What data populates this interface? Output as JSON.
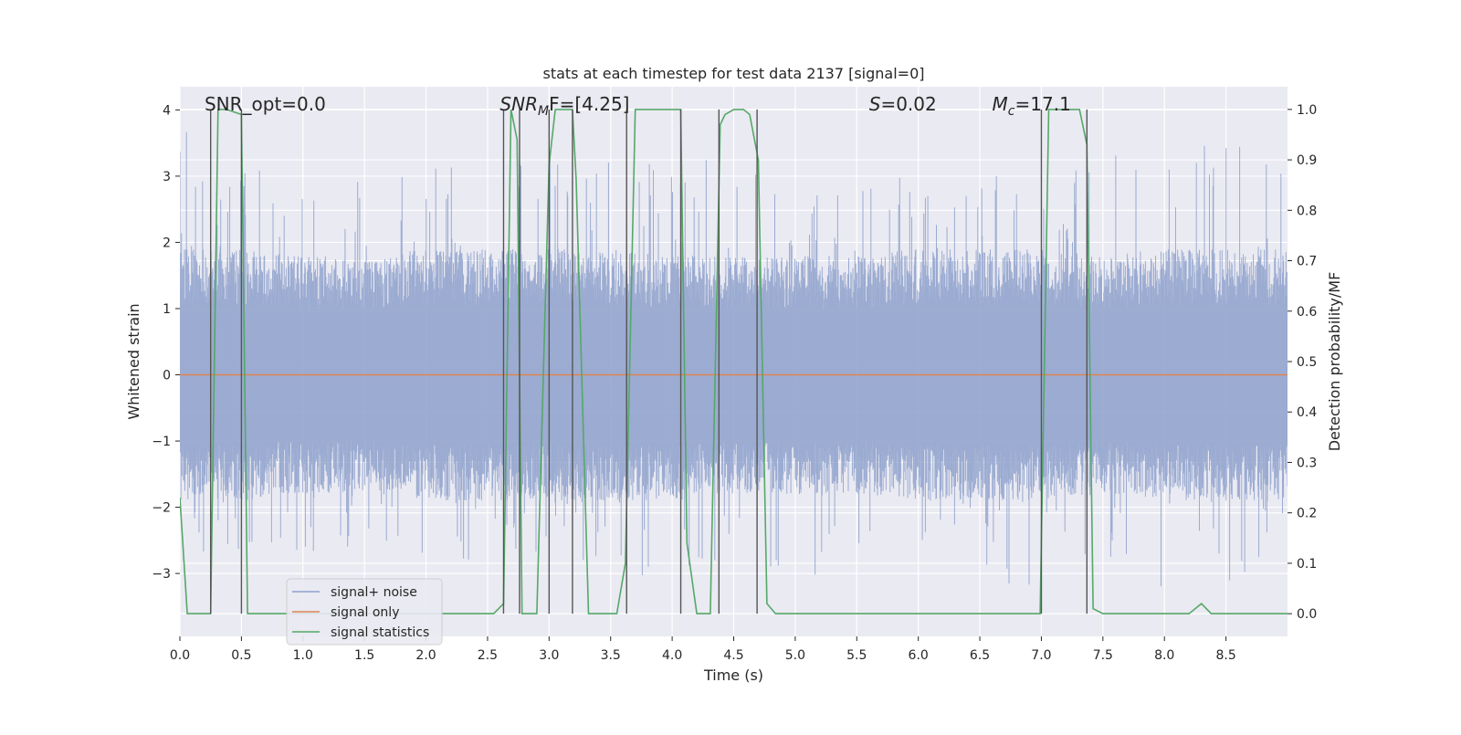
{
  "chart_data": {
    "type": "line",
    "title": "stats at each timestep for test data 2137 [signal=0]",
    "xlabel": "Time (s)",
    "ylabel": "Whitened strain",
    "y2label": "Detection probability/MF",
    "xlim": [
      0.0,
      9.0
    ],
    "ylim": [
      -3.95,
      4.35
    ],
    "y2lim": [
      -0.045,
      1.045
    ],
    "x_ticks": [
      0.0,
      0.5,
      1.0,
      1.5,
      2.0,
      2.5,
      3.0,
      3.5,
      4.0,
      4.5,
      5.0,
      5.5,
      6.0,
      6.5,
      7.0,
      7.5,
      8.0,
      8.5
    ],
    "x_tick_labels": [
      "0.0",
      "0.5",
      "1.0",
      "1.5",
      "2.0",
      "2.5",
      "3.0",
      "3.5",
      "4.0",
      "4.5",
      "5.0",
      "5.5",
      "6.0",
      "6.5",
      "7.0",
      "7.5",
      "8.0",
      "8.5"
    ],
    "y_ticks": [
      -3,
      -2,
      -1,
      0,
      1,
      2,
      3,
      4
    ],
    "y_tick_labels": [
      "−3",
      "−2",
      "−1",
      "0",
      "1",
      "2",
      "3",
      "4"
    ],
    "y2_ticks": [
      0.0,
      0.1,
      0.2,
      0.3,
      0.4,
      0.5,
      0.6,
      0.7,
      0.8,
      0.9,
      1.0
    ],
    "y2_tick_labels": [
      "0.0",
      "0.1",
      "0.2",
      "0.3",
      "0.4",
      "0.5",
      "0.6",
      "0.7",
      "0.8",
      "0.9",
      "1.0"
    ],
    "grid": true,
    "legend_position": "lower-left",
    "annotations": [
      {
        "label": "SNR_opt=0.0",
        "x": 0.2
      },
      {
        "label": "SNR",
        "sub": "M",
        "post": "F=[4.25]",
        "x": 2.6
      },
      {
        "label": "S",
        "post": "=0.02",
        "x": 5.6
      },
      {
        "label": "M",
        "sub": "c",
        "post": "=17.1",
        "x": 6.6
      }
    ],
    "colors": {
      "plot_bg": "#eaeaf2",
      "grid": "#ffffff",
      "noise": "#8da0cb",
      "signal_only": "#dd8452",
      "statistics": "#55a868",
      "vlines": "#555555"
    },
    "series": [
      {
        "name": "signal+ noise",
        "kind": "noise",
        "envelope": {
          "x": [
            0.0,
            0.5,
            1.0,
            1.5,
            2.0,
            2.5,
            3.0,
            3.5,
            4.0,
            4.5,
            5.0,
            5.5,
            6.0,
            6.5,
            7.0,
            7.5,
            8.0,
            8.5,
            9.0
          ],
          "typical_max": [
            1.9,
            1.9,
            1.8,
            1.8,
            1.9,
            1.9,
            1.9,
            1.9,
            1.8,
            1.8,
            1.8,
            1.8,
            1.9,
            1.9,
            1.9,
            1.8,
            1.9,
            1.9,
            1.9
          ],
          "peak_max": [
            4.0,
            3.3,
            2.8,
            3.0,
            3.1,
            3.2,
            3.5,
            3.2,
            3.4,
            3.2,
            2.8,
            3.1,
            3.2,
            3.0,
            3.3,
            3.4,
            3.2,
            3.6,
            3.0
          ],
          "typical_min": [
            -1.9,
            -1.9,
            -1.8,
            -1.8,
            -1.9,
            -1.9,
            -1.9,
            -1.9,
            -1.9,
            -1.8,
            -1.8,
            -1.8,
            -1.9,
            -1.9,
            -1.9,
            -1.8,
            -1.9,
            -1.9,
            -1.9
          ],
          "peak_min": [
            -3.3,
            -2.6,
            -3.1,
            -2.5,
            -2.8,
            -2.8,
            -2.8,
            -2.8,
            -3.3,
            -2.6,
            -3.2,
            -2.9,
            -3.5,
            -3.0,
            -3.4,
            -3.0,
            -3.3,
            -3.4,
            -2.4
          ]
        }
      },
      {
        "name": "signal only",
        "kind": "line",
        "axis": "left",
        "x": [
          0.0,
          9.0
        ],
        "y": [
          0.0,
          0.0
        ]
      },
      {
        "name": "signal statistics",
        "kind": "line",
        "axis": "right",
        "x": [
          0.0,
          0.06,
          0.25,
          0.31,
          0.38,
          0.5,
          0.55,
          0.63,
          2.55,
          2.63,
          2.69,
          2.74,
          2.78,
          2.9,
          3.0,
          3.05,
          3.19,
          3.22,
          3.32,
          3.55,
          3.62,
          3.7,
          4.07,
          4.12,
          4.2,
          4.31,
          4.39,
          4.43,
          4.5,
          4.58,
          4.63,
          4.7,
          4.77,
          4.84,
          6.99,
          7.06,
          7.31,
          7.37,
          7.42,
          7.5,
          7.9,
          7.95,
          8.2,
          8.3,
          8.38,
          9.0
        ],
        "y": [
          0.23,
          0.0,
          0.0,
          1.0,
          1.0,
          0.99,
          0.0,
          0.0,
          0.0,
          0.02,
          1.0,
          0.94,
          0.0,
          0.0,
          0.89,
          1.0,
          1.0,
          0.86,
          0.0,
          0.0,
          0.1,
          1.0,
          1.0,
          0.14,
          0.0,
          0.0,
          0.97,
          0.99,
          1.0,
          1.0,
          0.99,
          0.9,
          0.02,
          0.0,
          0.0,
          1.0,
          1.0,
          0.93,
          0.01,
          0.0,
          0.0,
          0.0,
          0.0,
          0.02,
          0.0,
          0.0
        ]
      }
    ],
    "vlines": [
      0.25,
      0.5,
      2.63,
      2.76,
      3.0,
      3.19,
      3.63,
      4.07,
      4.38,
      4.69,
      7.0,
      7.37
    ]
  }
}
